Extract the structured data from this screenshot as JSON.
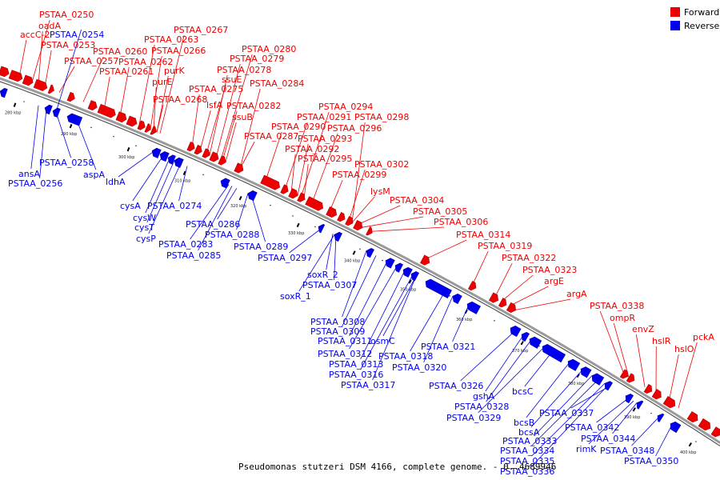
{
  "legend": [
    {
      "label": "Forward",
      "color": "#ee0000"
    },
    {
      "label": "Reverse",
      "color": "#0000ee"
    }
  ],
  "caption": "Pseudomonas stutzeri DSM 4166, complete genome. - 0..4689946",
  "ticks": [
    "280 kbp",
    "290 kbp",
    "300 kbp",
    "310 kbp",
    "320 kbp",
    "330 kbp",
    "340 kbp",
    "350 kbp",
    "360 kbp",
    "370 kbp",
    "380 kbp",
    "390 kbp",
    "400 kbp"
  ],
  "forward_genes": [
    "PSTAA_0250",
    "oadA",
    "accC-2",
    "PSTAA_0253",
    "PSTAA_0257",
    "PSTAA_0260",
    "PSTAA_0261",
    "PSTAA_0262",
    "PSTAA_0263",
    "PSTAA_0266",
    "PSTAA_0267",
    "purK",
    "purE",
    "PSTAA_0268",
    "PSTAA_0275",
    "lsfA",
    "ssuE",
    "PSTAA_0278",
    "PSTAA_0279",
    "PSTAA_0280",
    "PSTAA_0282",
    "ssuB",
    "PSTAA_0284",
    "PSTAA_0287",
    "PSTAA_0290",
    "PSTAA_0291",
    "PSTAA_0292",
    "PSTAA_0293",
    "PSTAA_0294",
    "PSTAA_0295",
    "PSTAA_0296",
    "PSTAA_0298",
    "PSTAA_0299",
    "PSTAA_0302",
    "lysM",
    "PSTAA_0304",
    "PSTAA_0305",
    "PSTAA_0306",
    "PSTAA_0314",
    "PSTAA_0319",
    "PSTAA_0322",
    "PSTAA_0323",
    "argE",
    "argA",
    "PSTAA_0338",
    "ompR",
    "envZ",
    "hslR",
    "hslO",
    "pckA"
  ],
  "reverse_genes": [
    "PSTAA_0254",
    "ansA",
    "PSTAA_0256",
    "PSTAA_0258",
    "aspA",
    "ldhA",
    "cysA",
    "cysW",
    "cysT",
    "cysP",
    "PSTAA_0274",
    "PSTAA_0283",
    "PSTAA_0285",
    "PSTAA_0286",
    "PSTAA_0288",
    "PSTAA_0289",
    "PSTAA_0297",
    "soxR_2",
    "PSTAA_0307",
    "soxR_1",
    "PSTAA_0308",
    "PSTAA_0309",
    "PSTAA_0311",
    "PSTAA_0312",
    "PSTAA_0313",
    "PSTAA_0316",
    "PSTAA_0317",
    "osmC",
    "PSTAA_0318",
    "PSTAA_0320",
    "PSTAA_0321",
    "PSTAA_0326",
    "gshA",
    "PSTAA_0328",
    "PSTAA_0329",
    "bcsC",
    "bcsB",
    "bcsA",
    "PSTAA_0333",
    "PSTAA_0334",
    "PSTAA_0335",
    "PSTAA_0336",
    "PSTAA_0337",
    "PSTAA_0342",
    "rimK",
    "PSTAA_0344",
    "PSTAA_0348",
    "PSTAA_0350"
  ]
}
